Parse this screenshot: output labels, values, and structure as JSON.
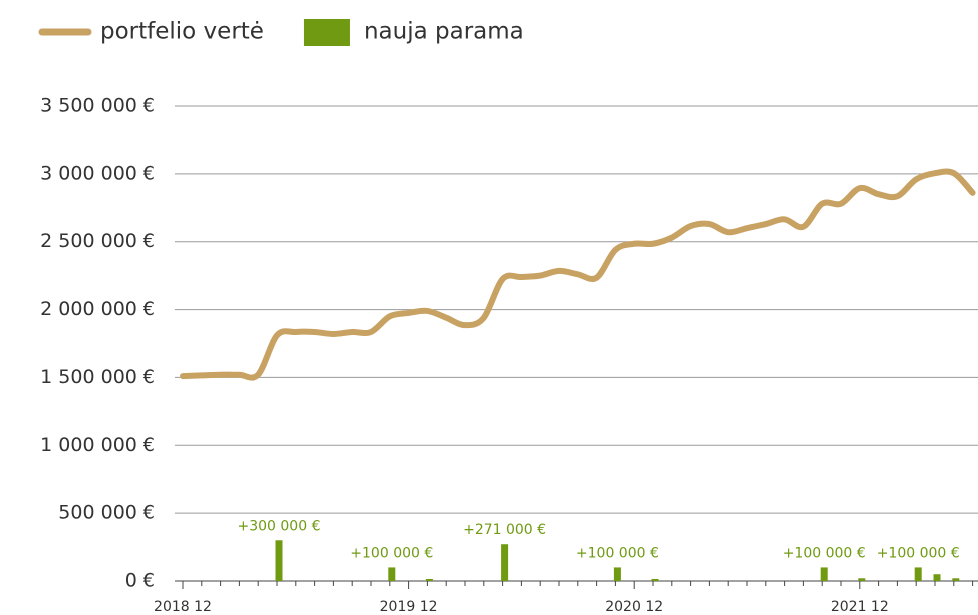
{
  "chart_data": {
    "type": "line-bar",
    "categories": [
      "2018 12",
      null,
      null,
      null,
      null,
      null,
      null,
      null,
      null,
      null,
      null,
      null,
      "2019 12",
      null,
      null,
      null,
      null,
      null,
      null,
      null,
      null,
      null,
      null,
      null,
      "2020 12",
      null,
      null,
      null,
      null,
      null,
      null,
      null,
      null,
      null,
      null,
      null,
      "2021 12",
      null,
      null,
      null,
      null,
      null,
      null
    ],
    "series": [
      {
        "name": "portfelio vertė",
        "type": "line",
        "color": "#c8a262",
        "values": [
          1510000,
          1515000,
          1520000,
          1520000,
          1520000,
          1810000,
          1835000,
          1835000,
          1820000,
          1835000,
          1835000,
          1950000,
          1975000,
          1990000,
          1940000,
          1885000,
          1940000,
          2225000,
          2240000,
          2250000,
          2285000,
          2260000,
          2235000,
          2440000,
          2485000,
          2485000,
          2530000,
          2615000,
          2630000,
          2570000,
          2600000,
          2630000,
          2665000,
          2610000,
          2780000,
          2780000,
          2895000,
          2850000,
          2835000,
          2960000,
          3005000,
          3005000,
          2860000
        ]
      },
      {
        "name": "nauja parama",
        "type": "bar",
        "color": "#6f9a12",
        "values": [
          0,
          0,
          0,
          0,
          0,
          300000,
          0,
          0,
          0,
          0,
          0,
          100000,
          0,
          15000,
          0,
          0,
          0,
          271000,
          0,
          0,
          0,
          0,
          0,
          100000,
          0,
          15000,
          0,
          0,
          0,
          0,
          0,
          0,
          0,
          0,
          100000,
          0,
          20000,
          0,
          0,
          100000,
          50000,
          20000,
          0
        ],
        "value_labels": [
          null,
          null,
          null,
          null,
          null,
          "+300 000 €",
          null,
          null,
          null,
          null,
          null,
          "+100 000 €",
          null,
          null,
          null,
          null,
          null,
          "+271 000 €",
          null,
          null,
          null,
          null,
          null,
          "+100 000 €",
          null,
          null,
          null,
          null,
          null,
          null,
          null,
          null,
          null,
          null,
          "+100 000 €",
          null,
          null,
          null,
          null,
          "+100 000 €",
          null,
          null,
          null
        ]
      }
    ],
    "ylim": [
      0,
      3500000
    ],
    "yticks": [
      {
        "value": 0,
        "label": "0 €"
      },
      {
        "value": 500000,
        "label": "500 000 €"
      },
      {
        "value": 1000000,
        "label": "1 000 000 €"
      },
      {
        "value": 1500000,
        "label": "1 500 000 €"
      },
      {
        "value": 2000000,
        "label": "2 000 000 €"
      },
      {
        "value": 2500000,
        "label": "2 500 000 €"
      },
      {
        "value": 3000000,
        "label": "3 000 000 €"
      },
      {
        "value": 3500000,
        "label": "3 500 000 €"
      }
    ],
    "grid": true,
    "legend": "top-left"
  }
}
